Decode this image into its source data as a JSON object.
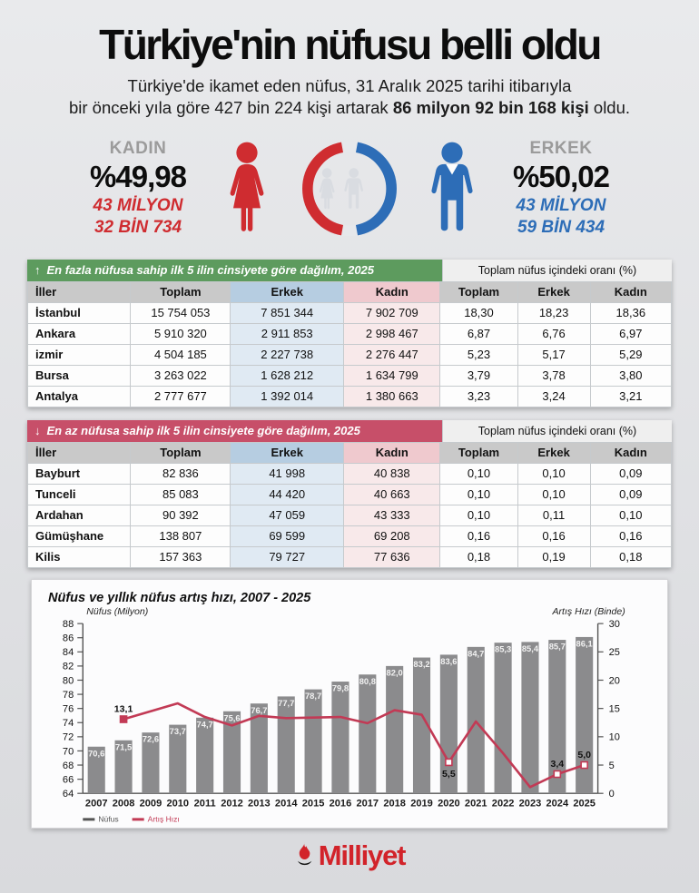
{
  "header": {
    "title": "Türkiye'nin nüfusu belli oldu",
    "subtitle_line1": "Türkiye'de ikamet eden nüfus, 31 Aralık 2025 tarihi itibarıyla",
    "subtitle_line2_prefix": "bir önceki yıla göre 427 bin 224 kişi artarak ",
    "subtitle_line2_bold": "86 milyon 92 bin 168 kişi",
    "subtitle_line2_suffix": " oldu."
  },
  "gender": {
    "female": {
      "label": "KADIN",
      "percent": "%49,98",
      "line1": "43 MİLYON",
      "line2": "32 BİN 734",
      "color": "#cf2c30"
    },
    "male": {
      "label": "ERKEK",
      "percent": "%50,02",
      "line1": "43 MİLYON",
      "line2": "59 BİN 434",
      "color": "#2d6db7"
    },
    "donut": {
      "female_color": "#cf2c30",
      "male_color": "#2d6db7",
      "inner_icon_color": "#d9dce1"
    }
  },
  "tables": [
    {
      "banner": {
        "arrow": "↑",
        "label": "En fazla nüfusa sahip ilk 5 ilin cinsiyete göre dağılım, 2025",
        "banner_color": "#5d9b5e",
        "right_label": "Toplam nüfus içindeki oranı (%)"
      },
      "columns": [
        "İller",
        "Toplam",
        "Erkek",
        "Kadın",
        "Toplam",
        "Erkek",
        "Kadın"
      ],
      "rows": [
        [
          "İstanbul",
          "15 754 053",
          "7 851 344",
          "7 902 709",
          "18,30",
          "18,23",
          "18,36"
        ],
        [
          "Ankara",
          "5 910 320",
          "2 911 853",
          "2 998 467",
          "6,87",
          "6,76",
          "6,97"
        ],
        [
          "izmir",
          "4 504 185",
          "2 227 738",
          "2 276 447",
          "5,23",
          "5,17",
          "5,29"
        ],
        [
          "Bursa",
          "3 263 022",
          "1 628 212",
          "1 634 799",
          "3,79",
          "3,78",
          "3,80"
        ],
        [
          "Antalya",
          "2 777 677",
          "1 392 014",
          "1 380 663",
          "3,23",
          "3,24",
          "3,21"
        ]
      ]
    },
    {
      "banner": {
        "arrow": "↓",
        "label": "En az nüfusa sahip ilk 5 ilin cinsiyete göre dağılım, 2025",
        "banner_color": "#c74f69",
        "right_label": "Toplam nüfus içindeki oranı (%)"
      },
      "columns": [
        "İller",
        "Toplam",
        "Erkek",
        "Kadın",
        "Toplam",
        "Erkek",
        "Kadın"
      ],
      "rows": [
        [
          "Bayburt",
          "82 836",
          "41 998",
          "40 838",
          "0,10",
          "0,10",
          "0,09"
        ],
        [
          "Tunceli",
          "85 083",
          "44 420",
          "40 663",
          "0,10",
          "0,10",
          "0,09"
        ],
        [
          "Ardahan",
          "90 392",
          "47 059",
          "43 333",
          "0,10",
          "0,11",
          "0,10"
        ],
        [
          "Gümüşhane",
          "138 807",
          "69 599",
          "69 208",
          "0,16",
          "0,16",
          "0,16"
        ],
        [
          "Kilis",
          "157 363",
          "79 727",
          "77 636",
          "0,18",
          "0,19",
          "0,18"
        ]
      ]
    }
  ],
  "chart_data": {
    "type": "bar+line",
    "title": "Nüfus ve yıllık nüfus artış hızı, 2007 - 2025",
    "left_axis": {
      "label": "Nüfus (Milyon)",
      "min": 64,
      "max": 88,
      "step": 2
    },
    "right_axis": {
      "label": "Artış Hızı (Binde)",
      "min": 0,
      "max": 30,
      "step": 5
    },
    "grid": false,
    "legend_position": "bottom-left",
    "categories": [
      "2007",
      "2008",
      "2009",
      "2010",
      "2011",
      "2012",
      "2013",
      "2014",
      "2015",
      "2016",
      "2017",
      "2018",
      "2019",
      "2020",
      "2021",
      "2022",
      "2023",
      "2024",
      "2025"
    ],
    "series": [
      {
        "name": "Nüfus",
        "type": "bar",
        "color": "#8b8b8d",
        "axis": "left",
        "values": [
          70.6,
          71.5,
          72.6,
          73.7,
          74.7,
          75.6,
          76.7,
          77.7,
          78.7,
          79.8,
          80.8,
          82.0,
          83.2,
          83.6,
          84.7,
          85.3,
          85.4,
          85.7,
          86.1
        ],
        "bar_labels": [
          "70,6",
          "71,5",
          "72,6",
          "73,7",
          "74,7",
          "75,6",
          "76,7",
          "77,7",
          "78,7",
          "79,8",
          "80,8",
          "82,0",
          "83,2",
          "83,6",
          "84,7",
          "85,3",
          "85,4",
          "85,7",
          "86,1"
        ]
      },
      {
        "name": "Artış Hızı",
        "type": "line",
        "color": "#c23a55",
        "axis": "right",
        "values": [
          null,
          13.1,
          14.5,
          15.9,
          13.5,
          12.0,
          13.7,
          13.3,
          13.4,
          13.5,
          12.4,
          14.7,
          13.9,
          5.5,
          12.7,
          7.1,
          1.1,
          3.4,
          5.0
        ],
        "markers": [
          {
            "year": "2008",
            "label": "13,1",
            "label_pos": "above",
            "filled": true
          },
          {
            "year": "2020",
            "label": "5,5",
            "label_pos": "below",
            "filled": false
          },
          {
            "year": "2024",
            "label": "3,4",
            "label_pos": "above",
            "filled": false
          },
          {
            "year": "2025",
            "label": "5,0",
            "label_pos": "above",
            "filled": false
          }
        ]
      }
    ],
    "legend": [
      {
        "label": "Nüfus",
        "color": "#555555"
      },
      {
        "label": "Artış Hızı",
        "color": "#c23a55"
      }
    ]
  },
  "footer": {
    "brand": "Milliyet",
    "color": "#d2232a"
  }
}
